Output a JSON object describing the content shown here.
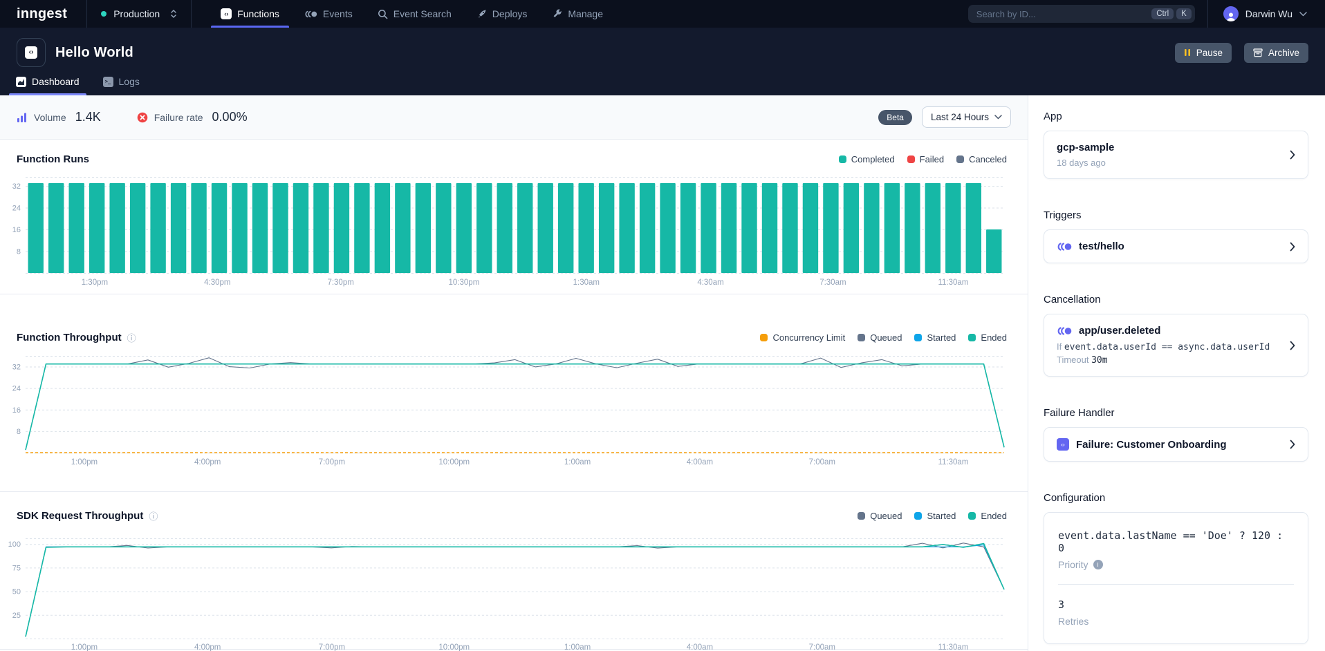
{
  "topnav": {
    "logo": "inngest",
    "environment": {
      "label": "Production"
    },
    "tabs": [
      {
        "label": "Functions",
        "active": true
      },
      {
        "label": "Events",
        "active": false
      },
      {
        "label": "Event Search",
        "active": false
      },
      {
        "label": "Deploys",
        "active": false
      },
      {
        "label": "Manage",
        "active": false
      }
    ],
    "search": {
      "placeholder": "Search by ID...",
      "shortcut": [
        "Ctrl",
        "K"
      ]
    },
    "user": {
      "name": "Darwin Wu"
    }
  },
  "header": {
    "title": "Hello World",
    "actions": {
      "pause": "Pause",
      "archive": "Archive"
    },
    "tabs": [
      {
        "label": "Dashboard",
        "active": true
      },
      {
        "label": "Logs",
        "active": false
      }
    ]
  },
  "statsbar": {
    "stats": [
      {
        "label": "Volume",
        "value": "1.4K"
      },
      {
        "label": "Failure rate",
        "value": "0.00%"
      }
    ],
    "beta_badge": "Beta",
    "range_selector": "Last 24 Hours"
  },
  "chart_data": [
    {
      "type": "bar",
      "title": "Function Runs",
      "legend": [
        {
          "label": "Completed",
          "color": "#16b8a6"
        },
        {
          "label": "Failed",
          "color": "#ef4444"
        },
        {
          "label": "Canceled",
          "color": "#64748b"
        }
      ],
      "bar_color": "#16b8a6",
      "ylim": [
        0,
        35.3
      ],
      "y_ticks": [
        32,
        24,
        16,
        8
      ],
      "x_ticks": {
        "labels": [
          "1:30pm",
          "4:30pm",
          "7:30pm",
          "10:30pm",
          "1:30am",
          "4:30am",
          "7:30am",
          "11:30am"
        ],
        "fractions": [
          0.0706,
          0.196,
          0.322,
          0.448,
          0.573,
          0.7,
          0.825,
          0.948
        ]
      },
      "values": [
        33,
        33,
        33,
        33,
        33,
        33,
        33,
        33,
        33,
        33,
        33,
        33,
        33,
        33,
        33,
        33,
        33,
        33,
        33,
        33,
        33,
        33,
        33,
        33,
        33,
        33,
        33,
        33,
        33,
        33,
        33,
        33,
        33,
        33,
        33,
        33,
        33,
        33,
        33,
        33,
        33,
        33,
        33,
        33,
        33,
        33,
        33,
        16
      ]
    },
    {
      "type": "line",
      "title": "Function Throughput",
      "legend": [
        {
          "label": "Concurrency Limit",
          "color": "#f59e0b"
        },
        {
          "label": "Queued",
          "color": "#64748b"
        },
        {
          "label": "Started",
          "color": "#0ea5e9"
        },
        {
          "label": "Ended",
          "color": "#16b8a6"
        }
      ],
      "ylim": [
        0,
        36
      ],
      "y_ticks": [
        32,
        24,
        16,
        8
      ],
      "x_ticks": {
        "labels": [
          "1:00pm",
          "4:00pm",
          "7:00pm",
          "10:00pm",
          "1:00am",
          "4:00am",
          "7:00am",
          "11:30am"
        ],
        "fractions": [
          0.06,
          0.186,
          0.313,
          0.438,
          0.564,
          0.689,
          0.814,
          0.948
        ]
      },
      "series": [
        {
          "name": "Concurrency Limit",
          "color": "#f59e0b",
          "dashed": true,
          "width": 1.6,
          "values": [
            0,
            0
          ]
        },
        {
          "name": "Queued",
          "color": "#64748b",
          "width": 1.1,
          "values": [
            1,
            33,
            33,
            33,
            33,
            33,
            34.5,
            31.8,
            33.2,
            35.3,
            32,
            31.5,
            33,
            33.5,
            33,
            33,
            33,
            33,
            33,
            33,
            33,
            33,
            33,
            33.4,
            34.6,
            31.9,
            33,
            35.1,
            33,
            31.6,
            33.3,
            34.8,
            32.1,
            33,
            33,
            33,
            33,
            33,
            33,
            35.2,
            31.7,
            33.4,
            34.6,
            32.3,
            33,
            33,
            33,
            33,
            2
          ]
        },
        {
          "name": "Started",
          "color": "#0ea5e9",
          "width": 1.1,
          "values": [
            1,
            33,
            33,
            33,
            33,
            33,
            33,
            33,
            33,
            33,
            33,
            33,
            33,
            33,
            33,
            33,
            33,
            33,
            33,
            33,
            33,
            33,
            33,
            33,
            33,
            33,
            33,
            33,
            33,
            33,
            33,
            33,
            33,
            33,
            33,
            33,
            33,
            33,
            33,
            33,
            33,
            33,
            33,
            33,
            33,
            33,
            33,
            33,
            2
          ]
        },
        {
          "name": "Ended",
          "color": "#16b8a6",
          "width": 1.6,
          "values": [
            1,
            33,
            33,
            33,
            33,
            33,
            33,
            33,
            33,
            33,
            33,
            33,
            33,
            33,
            33,
            33,
            33,
            33,
            33,
            33,
            33,
            33,
            33,
            33,
            33,
            33,
            33,
            33,
            33,
            33,
            33,
            33,
            33,
            33,
            33,
            33,
            33,
            33,
            33,
            33,
            33,
            33,
            33,
            33,
            33,
            33,
            33,
            33,
            2
          ]
        }
      ]
    },
    {
      "type": "line",
      "title": "SDK Request Throughput",
      "legend": [
        {
          "label": "Queued",
          "color": "#64748b"
        },
        {
          "label": "Started",
          "color": "#0ea5e9"
        },
        {
          "label": "Ended",
          "color": "#16b8a6"
        }
      ],
      "ylim": [
        0,
        106
      ],
      "y_ticks": [
        100,
        75,
        50,
        25
      ],
      "x_ticks": {
        "labels": [
          "1:00pm",
          "4:00pm",
          "7:00pm",
          "10:00pm",
          "1:00am",
          "4:00am",
          "7:00am",
          "11:30am"
        ],
        "fractions": [
          0.06,
          0.186,
          0.313,
          0.438,
          0.564,
          0.689,
          0.814,
          0.948
        ]
      },
      "series": [
        {
          "name": "Queued",
          "color": "#64748b",
          "width": 1.1,
          "values": [
            2,
            97,
            97,
            97,
            97,
            98.5,
            95.8,
            97,
            97,
            97,
            97,
            97,
            97,
            97,
            97,
            95.9,
            97.4,
            97,
            97,
            97,
            97,
            97,
            97,
            97,
            97,
            97,
            97,
            97,
            97,
            97,
            98.3,
            95.7,
            97,
            97,
            97,
            97,
            97,
            97,
            97,
            97,
            97,
            97,
            97,
            97,
            100.8,
            95.9,
            101,
            97,
            52
          ]
        },
        {
          "name": "Started",
          "color": "#0ea5e9",
          "width": 1.1,
          "values": [
            2,
            97,
            97,
            97,
            97,
            97,
            97,
            97,
            97,
            97,
            97,
            97,
            97,
            97,
            97,
            97,
            97,
            97,
            97,
            97,
            97,
            97,
            97,
            97,
            97,
            97,
            97,
            97,
            97,
            97,
            97,
            97,
            97,
            97,
            97,
            97,
            97,
            97,
            97,
            97,
            97,
            97,
            97,
            97,
            97,
            97,
            97,
            99,
            52
          ]
        },
        {
          "name": "Ended",
          "color": "#16b8a6",
          "width": 1.6,
          "values": [
            2,
            96.5,
            97,
            97,
            97,
            97,
            97,
            97,
            97,
            97,
            97,
            97,
            97,
            97,
            97,
            97,
            97,
            97,
            97,
            97,
            97,
            97,
            97,
            97,
            97,
            97,
            97,
            97,
            97,
            97,
            97,
            97,
            97,
            97,
            97,
            97,
            97,
            97,
            97,
            97,
            97,
            97,
            97,
            97,
            97,
            99.5,
            96.5,
            100.5,
            52
          ]
        }
      ]
    }
  ],
  "sidebar": {
    "sections": [
      {
        "title": "App",
        "card": {
          "title": "gcp-sample",
          "subtitle": "18 days ago"
        }
      },
      {
        "title": "Triggers",
        "card": {
          "title": "test/hello"
        }
      },
      {
        "title": "Cancellation",
        "card": {
          "title": "app/user.deleted",
          "condition_prefix": "If",
          "condition": "event.data.userId == async.data.userId",
          "timeout_label": "Timeout",
          "timeout_value": "30m"
        }
      },
      {
        "title": "Failure Handler",
        "card": {
          "title": "Failure: Customer Onboarding"
        }
      },
      {
        "title": "Configuration",
        "card": {
          "expression": "event.data.lastName == 'Doe' ? 120 : 0",
          "expression_label": "Priority",
          "retries_value": "3",
          "retries_label": "Retries"
        }
      }
    ]
  }
}
